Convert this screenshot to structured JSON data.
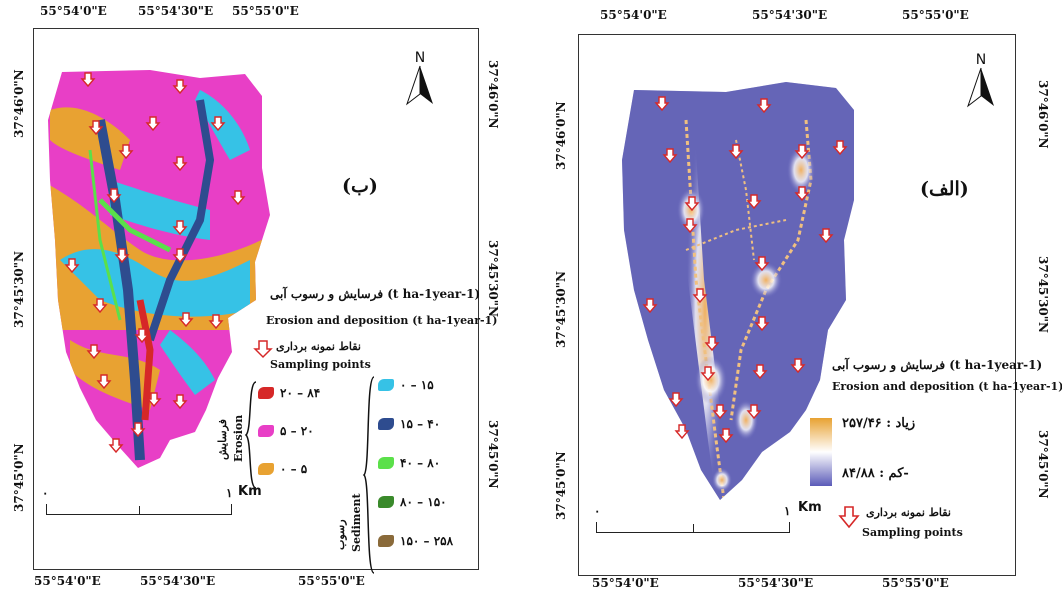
{
  "left": {
    "panel_label": "(ب)",
    "top_ticks": [
      "55°54'0\"E",
      "55°54'30\"E",
      "55°55'0\"E"
    ],
    "bottom_ticks": [
      "55°54'0\"E",
      "55°54'30\"E",
      "55°55'0\"E"
    ],
    "left_ticks": [
      "37°46'0\"N",
      "37°45'30\"N",
      "37°45'0\"N"
    ],
    "right_ticks": [
      "37°46'0\"N",
      "37°45'30\"N",
      "37°45'0\"N"
    ],
    "north": "N",
    "scale_zero": "۰",
    "scale_one": "۱",
    "scale_unit": "Km",
    "legend_title_fa": "فرسایش و رسوب آبی (t ha-1year-1)",
    "legend_title_en": "Erosion and deposition (t ha-1year-1)",
    "sampling_fa": "نقاط نمونه برداری",
    "sampling_en": "Sampling points",
    "erosion_fa": "فرسایش",
    "erosion_en": "Erosion",
    "sediment_fa": "رسوب",
    "sediment_en": "Sediment",
    "erosion_classes": [
      {
        "label": "۲۰ – ۸۴",
        "color": "#d62828"
      },
      {
        "label": "۵ – ۲۰",
        "color": "#e83fc6"
      },
      {
        "label": "۰ – ۵",
        "color": "#e8a232"
      }
    ],
    "sediment_classes": [
      {
        "label": "۰ – ۱۵",
        "color": "#36c2e6"
      },
      {
        "label": "۱۵ – ۴۰",
        "color": "#2e4c8f"
      },
      {
        "label": "۴۰ – ۸۰",
        "color": "#5be04a"
      },
      {
        "label": "۸۰ – ۱۵۰",
        "color": "#3a8a2b"
      },
      {
        "label": "۱۵۰ – ۲۵۸",
        "color": "#8a6a3a"
      }
    ]
  },
  "right": {
    "panel_label": "(الف)",
    "top_ticks": [
      "55°54'0\"E",
      "55°54'30\"E",
      "55°55'0\"E"
    ],
    "bottom_ticks": [
      "55°54'0\"E",
      "55°54'30\"E",
      "55°55'0\"E"
    ],
    "left_ticks": [
      "37°46'0\"N",
      "37°45'30\"N",
      "37°45'0\"N"
    ],
    "right_ticks": [
      "37°46'0\"N",
      "37°45'30\"N",
      "37°45'0\"N"
    ],
    "north": "N",
    "scale_zero": "۰",
    "scale_one": "۱",
    "scale_unit": "Km",
    "legend_title_fa": "فرسایش و رسوب آبی (t ha-1year-1)",
    "legend_title_en": "Erosion and deposition (t ha-1year-1)",
    "high_label": "زیاد : ۲۵۷/۴۶",
    "low_label": "کم : ۸۴/۸۸-",
    "sampling_fa": "نقاط نمونه برداری",
    "sampling_en": "Sampling points",
    "gradient_colors": [
      "#e8a232",
      "#ffffff",
      "#5b5bb8"
    ]
  }
}
